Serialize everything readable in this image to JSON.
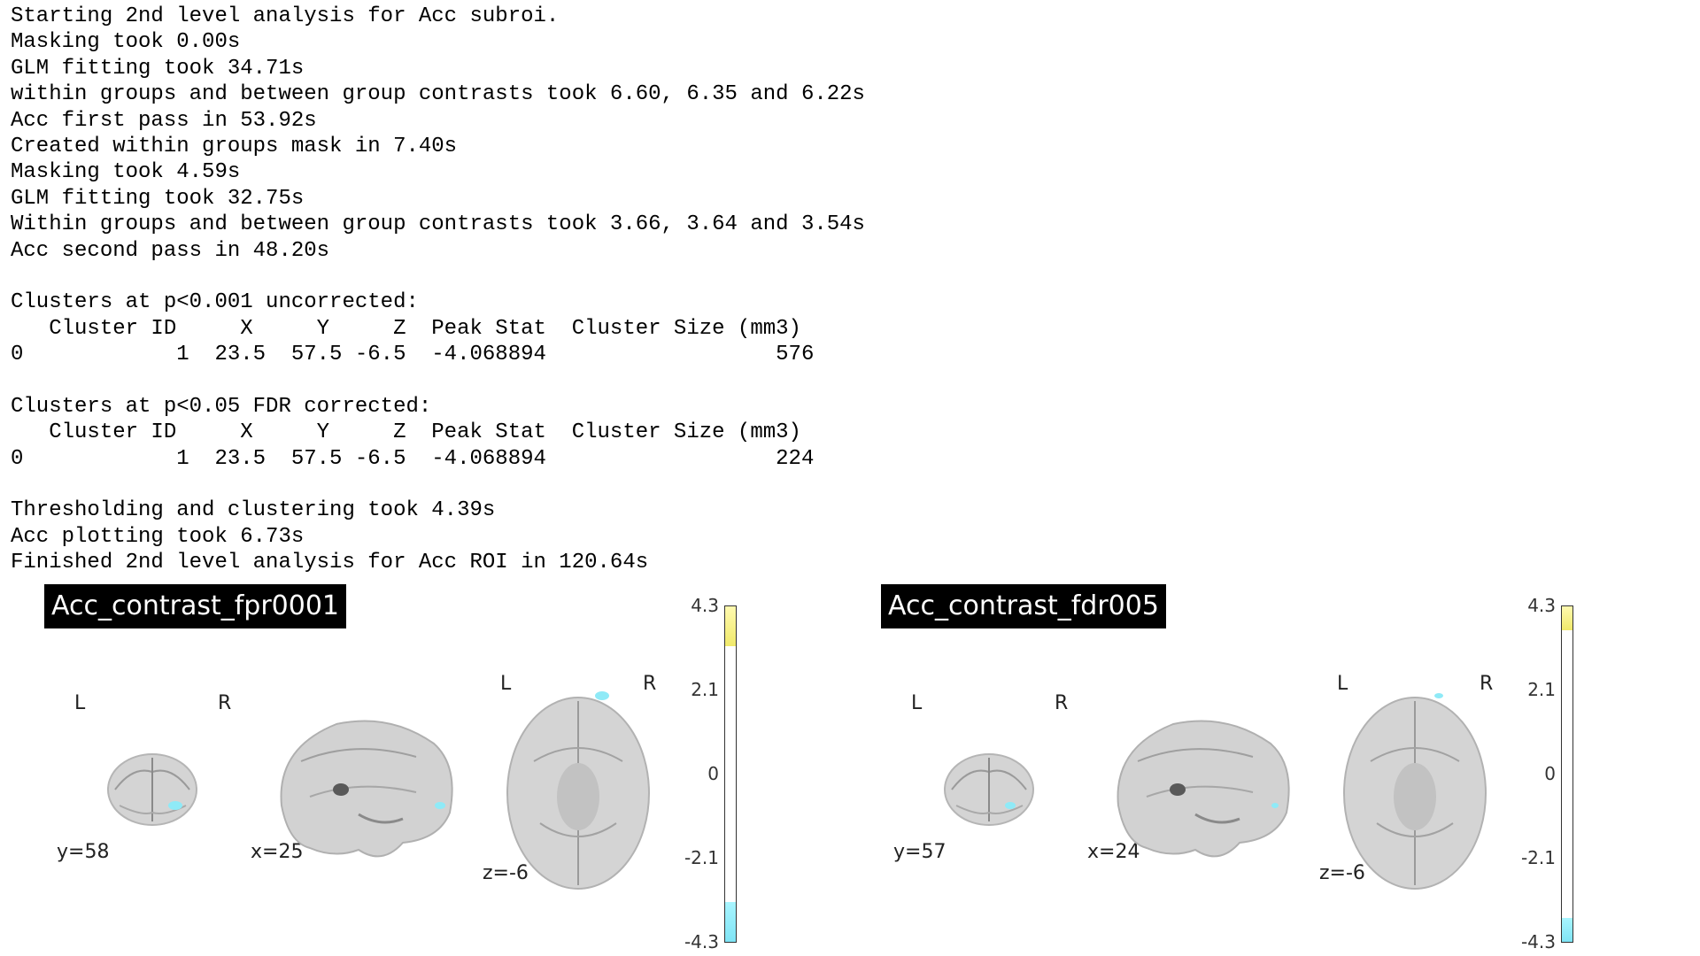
{
  "console_lines": [
    "Starting 2nd level analysis for Acc subroi.",
    "Masking took 0.00s",
    "GLM fitting took 34.71s",
    "within groups and between group contrasts took 6.60, 6.35 and 6.22s",
    "Acc first pass in 53.92s",
    "Created within groups mask in 7.40s",
    "Masking took 4.59s",
    "GLM fitting took 32.75s",
    "Within groups and between group contrasts took 3.66, 3.64 and 3.54s",
    "Acc second pass in 48.20s",
    "",
    "Clusters at p<0.001 uncorrected:",
    "   Cluster ID     X     Y     Z  Peak Stat  Cluster Size (mm3)",
    "0            1  23.5  57.5 -6.5  -4.068894                  576",
    "",
    "Clusters at p<0.05 FDR corrected:",
    "   Cluster ID     X     Y     Z  Peak Stat  Cluster Size (mm3)",
    "0            1  23.5  57.5 -6.5  -4.068894                  224",
    "",
    "Thresholding and clustering took 4.39s",
    "Acc plotting took 6.73s",
    "Finished 2nd level analysis for Acc ROI in 120.64s"
  ],
  "panels": [
    {
      "title": "Acc_contrast_fpr0001",
      "left_label": "L",
      "right_label": "R",
      "left_label_axial": "L",
      "right_label_axial": "R",
      "coronal_coord": "y=58",
      "sagittal_coord": "x=25",
      "axial_coord": "z=-6",
      "colorbar": {
        "ticks": [
          "4.3",
          "2.1",
          "0",
          "-2.1",
          "-4.3"
        ],
        "threshold_fraction": 0.12
      }
    },
    {
      "title": "Acc_contrast_fdr005",
      "left_label": "L",
      "right_label": "R",
      "left_label_axial": "L",
      "right_label_axial": "R",
      "coronal_coord": "y=57",
      "sagittal_coord": "x=24",
      "axial_coord": "z=-6",
      "colorbar": {
        "ticks": [
          "4.3",
          "2.1",
          "0",
          "-2.1",
          "-4.3"
        ],
        "threshold_fraction": 0.07
      }
    }
  ],
  "colors": {
    "positive": "#f0e96a",
    "negative": "#8feaf7",
    "brain": "#cfcfcf"
  }
}
